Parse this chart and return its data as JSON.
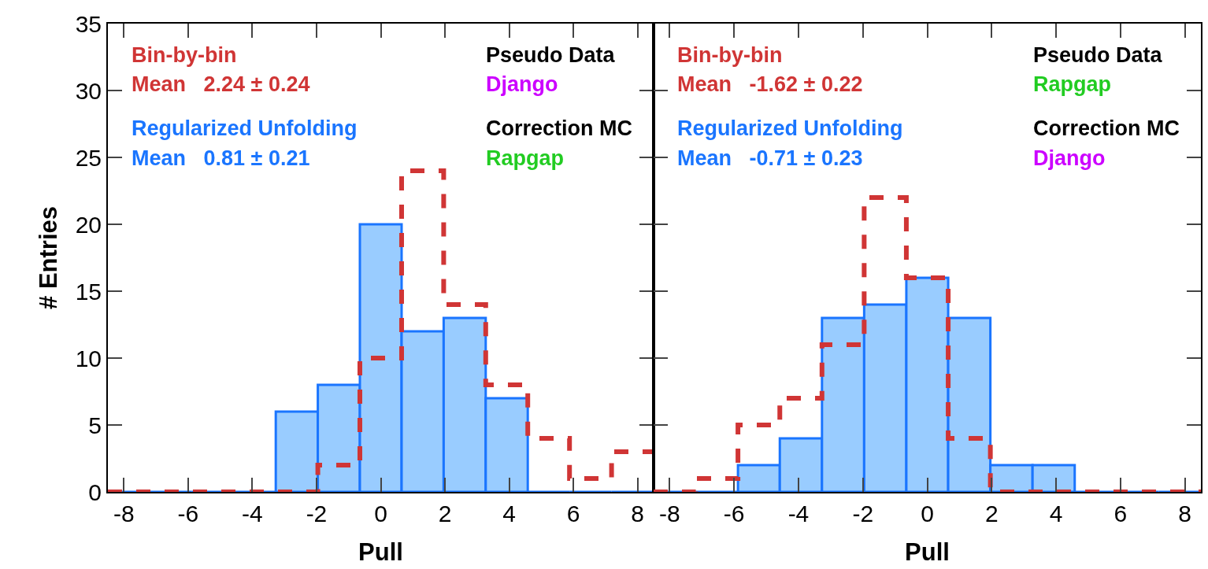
{
  "chart_data": [
    {
      "type": "histogram",
      "xlabel": "Pull",
      "ylabel": "# Entries",
      "bins": [
        -8.5,
        -7.19,
        -5.88,
        -4.58,
        -3.27,
        -1.96,
        -0.65,
        0.65,
        1.96,
        3.27,
        4.58,
        5.88,
        7.19,
        8.5
      ],
      "series": [
        {
          "name": "Regularized Unfolding",
          "color": "#1a75ff",
          "values": [
            0,
            0,
            0,
            0,
            6,
            8,
            20,
            12,
            13,
            7,
            0,
            0,
            0
          ]
        },
        {
          "name": "Bin-by-bin",
          "type": "step",
          "color": "#d03535",
          "line_style": "dashed",
          "x": [
            -8.5,
            -7.19,
            -5.88,
            -4.58,
            -3.27,
            -1.96,
            -0.65,
            0.65,
            1.96,
            3.27,
            4.58,
            5.88,
            7.19,
            8.5
          ],
          "values": [
            0,
            0,
            0,
            0,
            0,
            2,
            10,
            24,
            14,
            8,
            4,
            1,
            3,
            3
          ]
        }
      ],
      "annotations": [
        "Mean   2.24 ± 0.24",
        "Mean   0.81 ± 0.21",
        "Pseudo Data",
        "Django",
        "Correction MC",
        "Rapgap"
      ],
      "xlim": [
        -8.5,
        8.5
      ],
      "xticks": [
        -8,
        -6,
        -4,
        -2,
        0,
        2,
        4,
        6,
        8
      ],
      "ylim": [
        0,
        35
      ],
      "yticks": [
        0,
        5,
        10,
        15,
        20,
        25,
        30,
        35
      ],
      "grid": false,
      "legend": "top left"
    },
    {
      "type": "histogram",
      "xlabel": "Pull",
      "bins": [
        -8.5,
        -7.19,
        -5.88,
        -4.58,
        -3.27,
        -1.96,
        -0.65,
        0.65,
        1.96,
        3.27,
        4.58,
        5.88,
        7.19,
        8.5
      ],
      "series": [
        {
          "name": "Regularized Unfolding",
          "color": "#1a75ff",
          "values": [
            0,
            0,
            2,
            4,
            13,
            14,
            16,
            13,
            2,
            2,
            0,
            0,
            0
          ]
        },
        {
          "name": "Bin-by-bin",
          "type": "step",
          "color": "#d03535",
          "line_style": "dashed",
          "x": [
            -8.5,
            -7.19,
            -5.88,
            -4.58,
            -3.27,
            -1.96,
            -0.65,
            0.65,
            1.96,
            3.27,
            4.58,
            5.88,
            7.19,
            8.5
          ],
          "values": [
            0,
            1,
            5,
            7,
            11,
            22,
            16,
            4,
            0,
            0,
            0,
            0,
            0,
            0
          ]
        }
      ],
      "annotations": [
        "Mean   -1.62 ± 0.22",
        "Mean   -0.71 ± 0.23",
        "Pseudo Data",
        "Rapgap",
        "Correction MC",
        "Django"
      ],
      "xlim": [
        -8.5,
        8.5
      ],
      "xticks": [
        -8,
        -6,
        -4,
        -2,
        0,
        2,
        4,
        6,
        8
      ],
      "ylim": [
        0,
        35
      ],
      "yticks": [
        0,
        5,
        10,
        15,
        20,
        25,
        30,
        35
      ],
      "grid": false,
      "legend": "top left",
      "tick_labels": "x"
    }
  ]
}
